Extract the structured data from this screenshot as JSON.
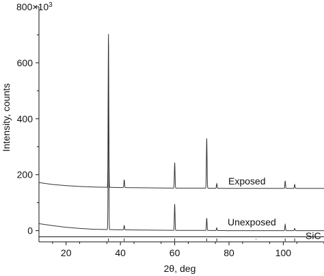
{
  "chart_data": {
    "type": "line",
    "title": "",
    "xlabel": "2θ, deg",
    "ylabel": "Intensity, counts",
    "y_multiplier_label": "800×10",
    "y_multiplier_exponent": "3",
    "xlim": [
      10,
      115
    ],
    "ylim": [
      -40,
      800
    ],
    "x_ticks": [
      20,
      40,
      60,
      80,
      100
    ],
    "x_tick_labels": [
      "20",
      "40",
      "60",
      "80",
      "100"
    ],
    "y_ticks": [
      0,
      200,
      400,
      600
    ],
    "y_tick_labels": [
      "0",
      "200",
      "400",
      "600"
    ],
    "grid": false,
    "series": [
      {
        "name": "Exposed",
        "color": "#333333",
        "baseline": {
          "x": [
            10,
            15,
            20,
            25,
            30,
            35,
            40,
            50,
            60,
            70,
            80,
            90,
            100,
            115
          ],
          "y": [
            172,
            165,
            161,
            158,
            156,
            155,
            154,
            153,
            152,
            152,
            151,
            151,
            151,
            151
          ]
        },
        "peaks": [
          {
            "x": 35.6,
            "y": 703
          },
          {
            "x": 41.4,
            "y": 182
          },
          {
            "x": 60.0,
            "y": 243
          },
          {
            "x": 71.8,
            "y": 330
          },
          {
            "x": 75.5,
            "y": 168
          },
          {
            "x": 100.7,
            "y": 178
          },
          {
            "x": 104.2,
            "y": 165
          }
        ]
      },
      {
        "name": "Unexposed",
        "color": "#333333",
        "baseline": {
          "x": [
            10,
            15,
            20,
            25,
            30,
            35,
            40,
            50,
            60,
            70,
            80,
            90,
            100,
            115
          ],
          "y": [
            25,
            18,
            12,
            8,
            5,
            4,
            3,
            2,
            1,
            1,
            0,
            0,
            0,
            0
          ]
        },
        "peaks": [
          {
            "x": 35.6,
            "y": 550
          },
          {
            "x": 41.4,
            "y": 18
          },
          {
            "x": 60.0,
            "y": 95
          },
          {
            "x": 71.8,
            "y": 45
          },
          {
            "x": 75.5,
            "y": 10
          },
          {
            "x": 100.7,
            "y": 22
          },
          {
            "x": 104.2,
            "y": 8
          }
        ]
      }
    ],
    "reference": {
      "name": "SiC",
      "positions": [
        35.6,
        41.4,
        60.0,
        71.8,
        75.5,
        90.0,
        100.7,
        104.2
      ]
    }
  }
}
